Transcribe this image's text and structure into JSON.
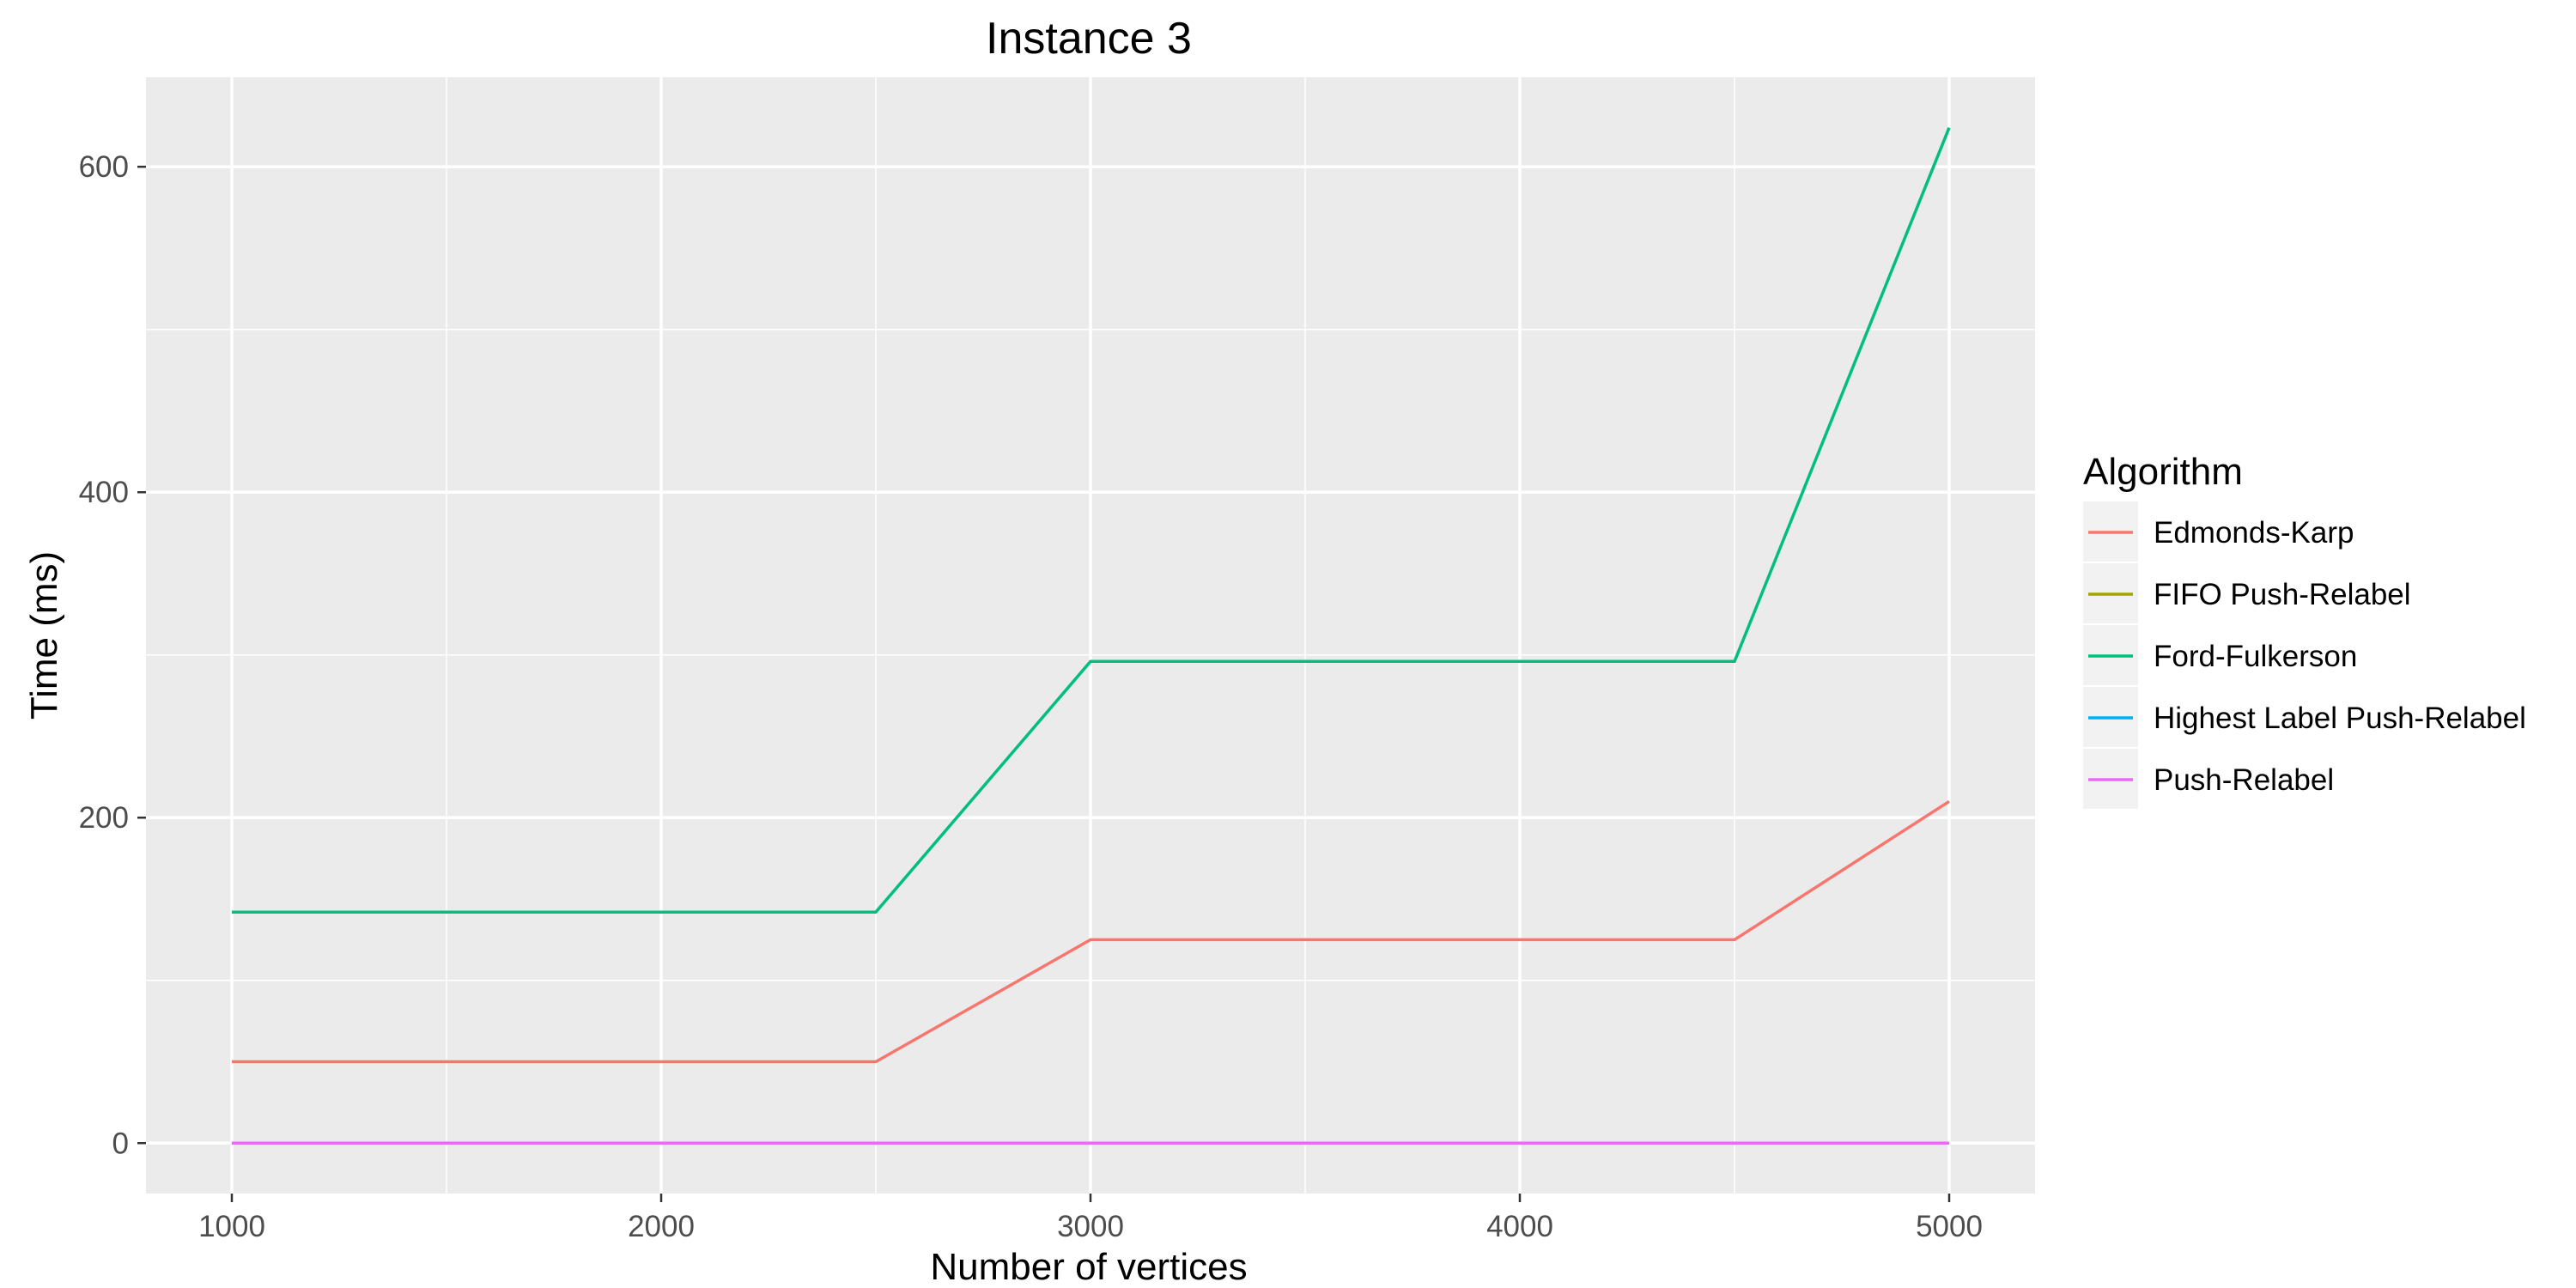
{
  "chart_data": {
    "type": "line",
    "title": "Instance 3",
    "xlabel": "Number of vertices",
    "ylabel": "Time (ms)",
    "xlim": [
      800,
      5200
    ],
    "ylim": [
      -31,
      655
    ],
    "x_ticks": [
      1000,
      2000,
      3000,
      4000,
      5000
    ],
    "y_ticks": [
      0,
      200,
      400,
      600
    ],
    "grid": true,
    "legend_title": "Algorithm",
    "legend_position": "right",
    "x": [
      1000,
      1500,
      2000,
      2500,
      3000,
      3500,
      4000,
      4500,
      5000
    ],
    "series": [
      {
        "name": "Edmonds-Karp",
        "color": "#F8766D",
        "values": [
          50,
          50,
          50,
          50,
          125,
          125,
          125,
          125,
          210
        ]
      },
      {
        "name": "FIFO Push-Relabel",
        "color": "#A3A500",
        "values": [
          0,
          0,
          0,
          0,
          0,
          0,
          0,
          0,
          0
        ]
      },
      {
        "name": "Ford-Fulkerson",
        "color": "#00BF7D",
        "values": [
          142,
          142,
          142,
          142,
          296,
          296,
          296,
          296,
          624
        ]
      },
      {
        "name": "Highest Label Push-Relabel",
        "color": "#00B0F6",
        "values": [
          0,
          0,
          0,
          0,
          0,
          0,
          0,
          0,
          0
        ]
      },
      {
        "name": "Push-Relabel",
        "color": "#E76BF3",
        "values": [
          0,
          0,
          0,
          0,
          0,
          0,
          0,
          0,
          0
        ]
      }
    ]
  }
}
